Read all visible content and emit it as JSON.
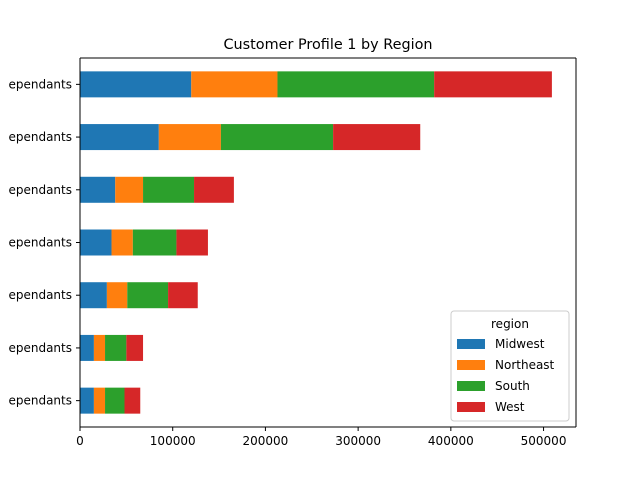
{
  "chart_data": {
    "type": "bar",
    "orientation": "horizontal",
    "stacked": true,
    "title": "Customer Profile 1 by Region",
    "xlabel": "",
    "ylabel": "",
    "categories": [
      "ependants",
      "ependants",
      "ependants",
      "ependants",
      "ependants",
      "ependants",
      "ependants"
    ],
    "series": [
      {
        "name": "Midwest",
        "color": "#1f77b4",
        "values": [
          15000,
          15000,
          29000,
          34000,
          38000,
          85000,
          120000
        ]
      },
      {
        "name": "Northeast",
        "color": "#ff7f0e",
        "values": [
          12000,
          12000,
          22000,
          23000,
          30000,
          67000,
          93000
        ]
      },
      {
        "name": "South",
        "color": "#2ca02c",
        "values": [
          21000,
          23000,
          44000,
          47000,
          55000,
          121000,
          169000
        ]
      },
      {
        "name": "West",
        "color": "#d62728",
        "values": [
          17000,
          18000,
          32000,
          34000,
          43000,
          94000,
          127000
        ]
      }
    ],
    "xlim": [
      0,
      535000
    ],
    "xticks": [
      0,
      100000,
      200000,
      300000,
      400000,
      500000
    ],
    "xtick_labels": [
      "0",
      "100000",
      "200000",
      "300000",
      "400000",
      "500000"
    ],
    "grid": false,
    "legend": {
      "title": "region",
      "placement": "lower-right"
    }
  }
}
